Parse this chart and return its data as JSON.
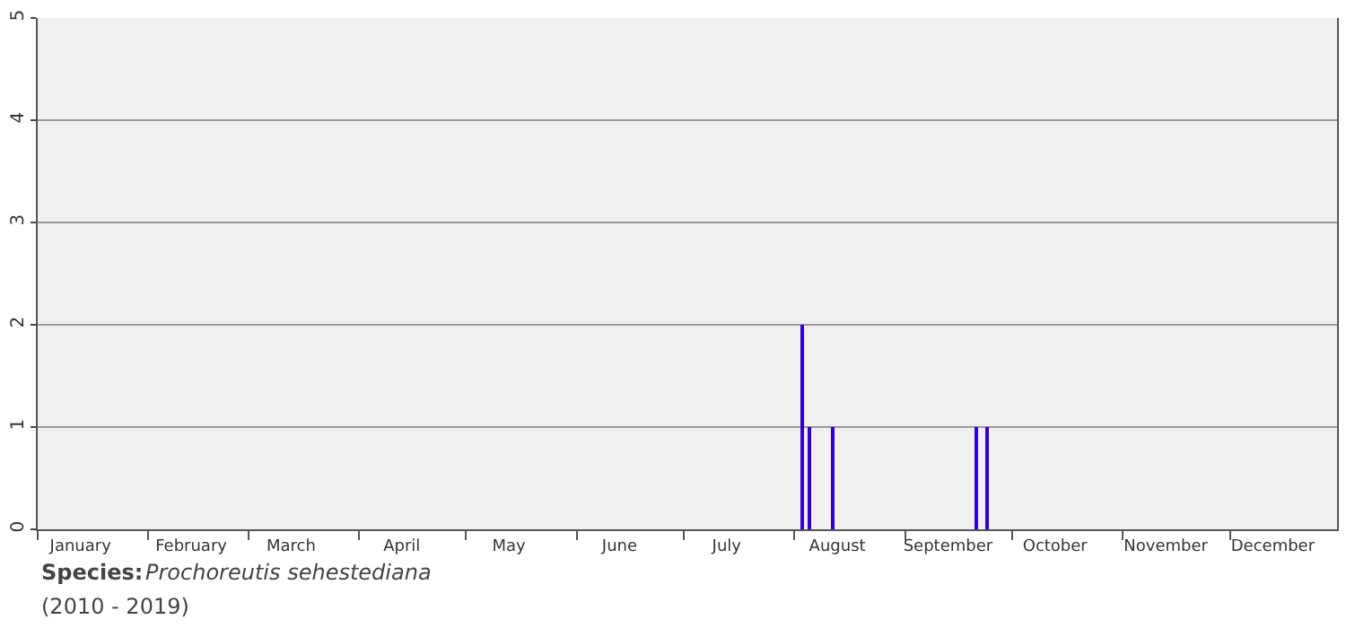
{
  "chart_data": {
    "type": "bar",
    "x": [
      "--08-03",
      "--08-05",
      "--08-12",
      "--09-21",
      "--09-24"
    ],
    "values": [
      2,
      1,
      1,
      1,
      1
    ],
    "color": "#3300cc",
    "xlim": [
      "--01-01",
      "--12-31"
    ],
    "xticks": [
      {
        "value": "--01-01",
        "label": null
      },
      {
        "value": "--01-13",
        "label": "January"
      },
      {
        "value": "--02-01",
        "label": null
      },
      {
        "value": "--02-13",
        "label": "February"
      },
      {
        "value": "--03-01",
        "label": null
      },
      {
        "value": "--03-13",
        "label": "March"
      },
      {
        "value": "--04-01",
        "label": null
      },
      {
        "value": "--04-13",
        "label": "April"
      },
      {
        "value": "--05-01",
        "label": null
      },
      {
        "value": "--05-13",
        "label": "May"
      },
      {
        "value": "--06-01",
        "label": null
      },
      {
        "value": "--06-13",
        "label": "June"
      },
      {
        "value": "--07-01",
        "label": null
      },
      {
        "value": "--07-13",
        "label": "July"
      },
      {
        "value": "--08-01",
        "label": null
      },
      {
        "value": "--08-13",
        "label": "August"
      },
      {
        "value": "--09-01",
        "label": null
      },
      {
        "value": "--09-13",
        "label": "September"
      },
      {
        "value": "--10-01",
        "label": null
      },
      {
        "value": "--10-13",
        "label": "October"
      },
      {
        "value": "--11-01",
        "label": null
      },
      {
        "value": "--11-13",
        "label": "November"
      },
      {
        "value": "--12-01",
        "label": null
      },
      {
        "value": "--12-13",
        "label": "December"
      }
    ],
    "ylim": [
      0,
      5
    ],
    "yticks": [
      0,
      1,
      2,
      3,
      4,
      5
    ],
    "grid": "y",
    "annotations": [
      "Species:",
      "Prochoreutis sehestediana",
      "(2010 - 2019)"
    ]
  }
}
